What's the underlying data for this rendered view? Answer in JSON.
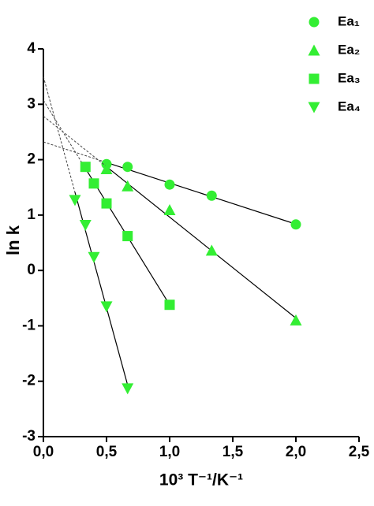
{
  "chart_data": {
    "type": "scatter",
    "xlabel": "10³ T⁻¹/K⁻¹",
    "ylabel": "ln k",
    "xlim": [
      0,
      2.5
    ],
    "ylim": [
      -3,
      4
    ],
    "xticks": [
      {
        "value": 0,
        "label": "0,0"
      },
      {
        "value": 0.5,
        "label": "0,5"
      },
      {
        "value": 1,
        "label": "1,0"
      },
      {
        "value": 1.5,
        "label": "1,5"
      },
      {
        "value": 2,
        "label": "2,0"
      },
      {
        "value": 2.5,
        "label": "2,5"
      }
    ],
    "yticks": [
      -3,
      -2,
      -1,
      0,
      1,
      2,
      3,
      4
    ],
    "legend": "upper right",
    "fit_lines": true,
    "series": [
      {
        "name": "Ea₁",
        "marker": "circle",
        "color": "#33ee33",
        "x": [
          0.5,
          0.667,
          1.0,
          1.333,
          2.0
        ],
        "values": [
          1.92,
          1.87,
          1.55,
          1.35,
          0.83
        ]
      },
      {
        "name": "Ea₂",
        "marker": "triangle-up",
        "color": "#33ee33",
        "x": [
          0.5,
          0.667,
          1.0,
          1.333,
          2.0
        ],
        "values": [
          1.83,
          1.52,
          1.09,
          0.36,
          -0.9
        ]
      },
      {
        "name": "Ea₃",
        "marker": "square",
        "color": "#33ee33",
        "x": [
          0.333,
          0.4,
          0.5,
          0.667,
          1.0
        ],
        "values": [
          1.87,
          1.57,
          1.21,
          0.62,
          -0.62
        ]
      },
      {
        "name": "Ea₄",
        "marker": "triangle-down",
        "color": "#33ee33",
        "x": [
          0.25,
          0.333,
          0.4,
          0.5,
          0.667
        ],
        "values": [
          1.27,
          0.82,
          0.24,
          -0.65,
          -2.13
        ]
      }
    ]
  }
}
